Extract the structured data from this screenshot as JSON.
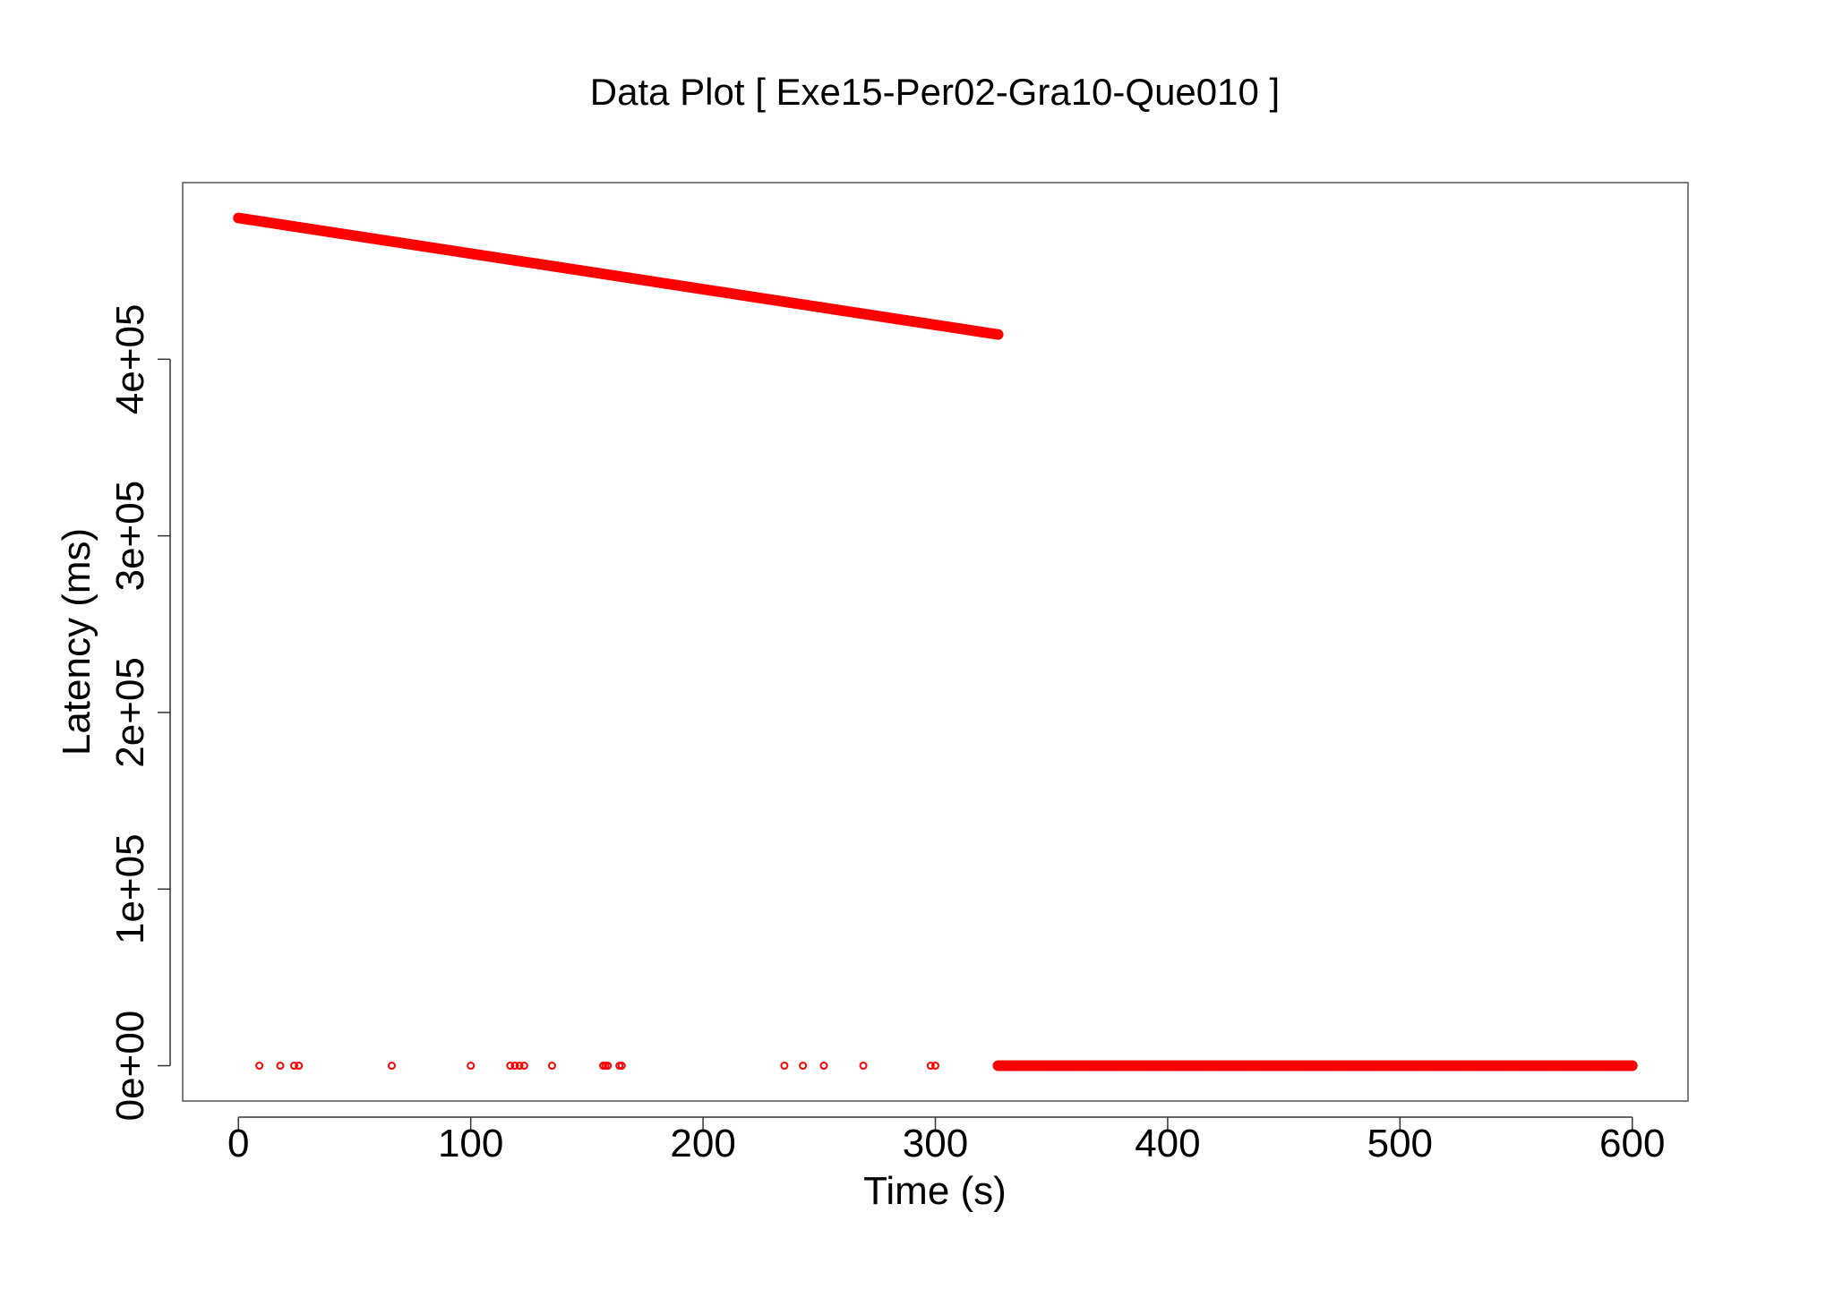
{
  "chart_data": {
    "type": "scatter",
    "title": "Data Plot [ Exe15-Per02-Gra10-Que010 ]",
    "xlabel": "Time (s)",
    "ylabel": "Latency (ms)",
    "xlim": [
      -24,
      624
    ],
    "ylim": [
      -20000,
      500000
    ],
    "x_ticks": [
      0,
      100,
      200,
      300,
      400,
      500,
      600
    ],
    "x_tick_labels": [
      "0",
      "100",
      "200",
      "300",
      "400",
      "500",
      "600"
    ],
    "y_ticks": [
      0,
      100000,
      200000,
      300000,
      400000
    ],
    "y_tick_labels": [
      "0e+00",
      "1e+05",
      "2e+05",
      "3e+05",
      "4e+05"
    ],
    "grid": false,
    "marker_color": "#ff0000",
    "series": [
      {
        "style": "dense-line",
        "x_start": 0,
        "x_end": 327,
        "y_start": 480000,
        "y_end": 414000
      },
      {
        "style": "dense-line",
        "x_start": 327,
        "x_end": 600,
        "y_start": 0,
        "y_end": 0
      },
      {
        "style": "points",
        "x": [
          9,
          18,
          24,
          26,
          66,
          100,
          117,
          119,
          121,
          123,
          135,
          157,
          158,
          159,
          164,
          165,
          235,
          243,
          252,
          269,
          298,
          300
        ],
        "y": [
          0,
          0,
          0,
          0,
          0,
          0,
          0,
          0,
          0,
          0,
          0,
          0,
          0,
          0,
          0,
          0,
          0,
          0,
          0,
          0,
          0,
          0
        ]
      }
    ]
  }
}
